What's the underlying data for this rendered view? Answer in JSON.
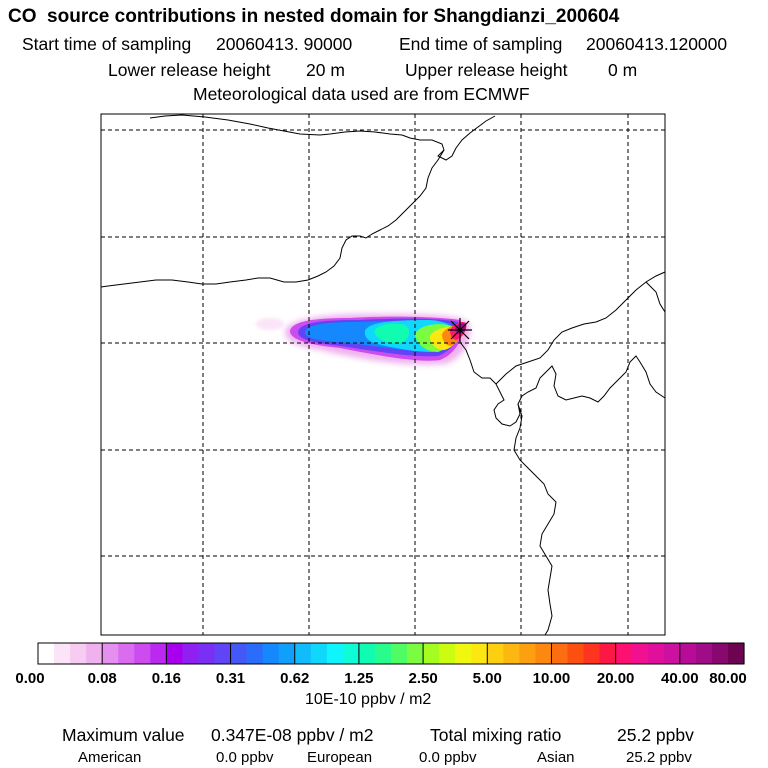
{
  "header": {
    "title": "CO  source contributions in nested domain for Shangdianzi_200604",
    "start_label": "Start time of sampling",
    "start_value": "20060413. 90000",
    "end_label": "End time of sampling",
    "end_value": "20060413.120000",
    "lower_label": "Lower release height",
    "lower_value": "20 m",
    "upper_label": "Upper release height",
    "upper_value": "0 m",
    "met_text": "Meteorological data used are from ECMWF"
  },
  "colorbar": {
    "ticks": [
      "0.00",
      "0.08",
      "0.16",
      "0.31",
      "0.62",
      "1.25",
      "2.50",
      "5.00",
      "10.00",
      "20.00",
      "40.00",
      "80.00"
    ],
    "unit": "10E-10 ppbv / m2",
    "colors": [
      "#ffffff",
      "#fbe4f8",
      "#f6ccf2",
      "#f0b2ef",
      "#e590ef",
      "#da6cef",
      "#cd4cf0",
      "#bb28f0",
      "#a800ef",
      "#9020f2",
      "#7a30f4",
      "#6044f6",
      "#4458f8",
      "#2c6cfa",
      "#1488fc",
      "#10a0fc",
      "#10bcfc",
      "#10d8fc",
      "#10f4fc",
      "#10fcd8",
      "#10fcb0",
      "#28fc8c",
      "#50fc64",
      "#7cfc40",
      "#a4fc20",
      "#ccfc10",
      "#f0f810",
      "#fce810",
      "#fcd010",
      "#fcb810",
      "#fca010",
      "#fc8810",
      "#fc6c10",
      "#fc5010",
      "#fc3420",
      "#fc1844",
      "#fc1070",
      "#f01090",
      "#e0109c",
      "#cc10a0",
      "#b80c98",
      "#a00c88",
      "#880870",
      "#6c0450"
    ]
  },
  "summary": {
    "max_label": "Maximum value",
    "max_value": "0.347E-08 ppbv / m2",
    "total_label": "Total mixing ratio",
    "total_value": "25.2 ppbv",
    "regions": [
      {
        "name": "American",
        "value": "0.0 ppbv"
      },
      {
        "name": "European",
        "value": "0.0 ppbv"
      },
      {
        "name": "Asian",
        "value": "25.2 ppbv"
      }
    ]
  },
  "map": {
    "receptor": "Shangdianzi",
    "frame_color": "#000000",
    "grid_color": "#000000"
  }
}
